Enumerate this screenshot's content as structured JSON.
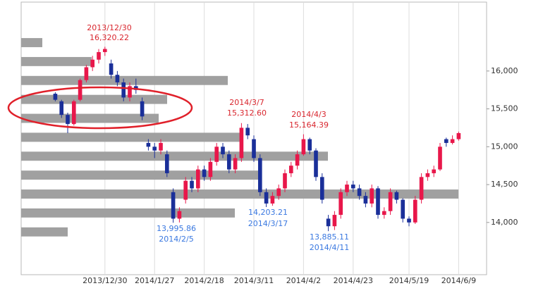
{
  "chart_data": {
    "type": "candlestick",
    "categories": [
      null,
      null,
      null,
      null,
      null,
      null,
      null,
      null,
      null,
      null,
      null,
      null,
      null,
      "2013/12/30",
      null,
      null,
      null,
      null,
      null,
      null,
      null,
      "2014/1/27",
      null,
      null,
      null,
      null,
      null,
      null,
      null,
      "2014/2/18",
      null,
      null,
      null,
      null,
      null,
      null,
      null,
      "2014/3/11",
      null,
      null,
      null,
      null,
      null,
      null,
      null,
      "2014/4/2",
      null,
      null,
      null,
      null,
      null,
      null,
      null,
      "2014/4/23",
      null,
      null,
      null,
      null,
      null,
      null,
      null,
      null,
      "2014/5/19",
      null,
      null,
      null,
      null,
      null,
      null,
      null,
      "2014/6/9",
      null,
      null,
      null,
      null
    ],
    "values": [
      null,
      null,
      null,
      null,
      null,
      [
        15700,
        15720,
        15600,
        15620
      ],
      [
        15600,
        15620,
        15380,
        15420
      ],
      [
        15420,
        15450,
        15180,
        15300
      ],
      [
        15300,
        15620,
        15280,
        15600
      ],
      [
        15620,
        15900,
        15600,
        15880
      ],
      [
        15880,
        16080,
        15850,
        16050
      ],
      [
        16050,
        16200,
        16000,
        16150
      ],
      [
        16150,
        16290,
        16100,
        16250
      ],
      [
        16250,
        16320.22,
        16200,
        16291
      ],
      [
        16100,
        16150,
        15900,
        15950
      ],
      [
        15950,
        16000,
        15800,
        15850
      ],
      [
        15850,
        15900,
        15600,
        15650
      ],
      [
        15650,
        15850,
        15600,
        15800
      ],
      [
        15800,
        15900,
        15700,
        15750
      ],
      [
        15600,
        15650,
        15350,
        15400
      ],
      [
        15050,
        15100,
        14950,
        15000
      ],
      [
        15000,
        15050,
        14850,
        14950
      ],
      [
        14950,
        15100,
        14900,
        15050
      ],
      [
        14900,
        14950,
        14600,
        14650
      ],
      [
        14400,
        14450,
        13995.86,
        14050
      ],
      [
        14050,
        14200,
        14000,
        14150
      ],
      [
        14300,
        14600,
        14250,
        14550
      ],
      [
        14550,
        14600,
        14400,
        14450
      ],
      [
        14450,
        14750,
        14400,
        14700
      ],
      [
        14700,
        14750,
        14550,
        14600
      ],
      [
        14600,
        14850,
        14550,
        14800
      ],
      [
        14800,
        15050,
        14750,
        15000
      ],
      [
        15000,
        15050,
        14850,
        14900
      ],
      [
        14900,
        14950,
        14650,
        14700
      ],
      [
        14700,
        14900,
        14650,
        14850
      ],
      [
        14850,
        15312.6,
        14800,
        15250
      ],
      [
        15250,
        15300,
        15100,
        15150
      ],
      [
        15100,
        15150,
        14800,
        14850
      ],
      [
        14850,
        14900,
        14350,
        14400
      ],
      [
        14400,
        14450,
        14203.21,
        14250
      ],
      [
        14250,
        14400,
        14220,
        14350
      ],
      [
        14350,
        14500,
        14300,
        14450
      ],
      [
        14450,
        14700,
        14400,
        14650
      ],
      [
        14650,
        14800,
        14600,
        14750
      ],
      [
        14750,
        14950,
        14700,
        14900
      ],
      [
        14900,
        15164.39,
        14880,
        15100
      ],
      [
        15100,
        15120,
        14900,
        14950
      ],
      [
        14950,
        14980,
        14550,
        14600
      ],
      [
        14600,
        14650,
        14250,
        14300
      ],
      [
        14050,
        14100,
        13885.11,
        13950
      ],
      [
        13950,
        14150,
        13900,
        14100
      ],
      [
        14100,
        14450,
        14050,
        14400
      ],
      [
        14400,
        14550,
        14350,
        14500
      ],
      [
        14500,
        14550,
        14400,
        14450
      ],
      [
        14450,
        14500,
        14300,
        14350
      ],
      [
        14350,
        14400,
        14200,
        14250
      ],
      [
        14250,
        14500,
        14200,
        14450
      ],
      [
        14450,
        14480,
        14050,
        14100
      ],
      [
        14100,
        14200,
        14050,
        14150
      ],
      [
        14150,
        14450,
        14100,
        14400
      ],
      [
        14400,
        14420,
        14250,
        14300
      ],
      [
        14300,
        14320,
        14000,
        14050
      ],
      [
        14050,
        14080,
        13950,
        14000
      ],
      [
        14000,
        14350,
        13980,
        14300
      ],
      [
        14300,
        14650,
        14250,
        14600
      ],
      [
        14600,
        14700,
        14550,
        14650
      ],
      [
        14650,
        14750,
        14600,
        14700
      ],
      [
        14700,
        15050,
        14680,
        15000
      ],
      [
        15100,
        15120,
        15000,
        15050
      ],
      [
        15050,
        15150,
        15030,
        15100
      ],
      [
        15100,
        15200,
        15080,
        15180
      ],
      null,
      null,
      null,
      null
    ],
    "up_color": "#e8174a",
    "down_color": "#1a2f99",
    "ylim": [
      13310,
      16910
    ],
    "yticks": [
      {
        "value": 14000,
        "label": "14,000"
      },
      {
        "value": 14500,
        "label": "14,500"
      },
      {
        "value": 15000,
        "label": "15,000"
      },
      {
        "value": 15500,
        "label": "15,500"
      },
      {
        "value": 16000,
        "label": "16,000"
      }
    ],
    "volume_profile": {
      "prices": [
        16375,
        16125,
        15875,
        15625,
        15375,
        15125,
        14875,
        14625,
        14375,
        14125,
        13875
      ],
      "values": [
        30,
        100,
        293,
        207,
        195,
        312,
        435,
        341,
        620,
        303,
        66
      ],
      "lim": [
        0,
        660
      ],
      "color": "#a0a0a0"
    },
    "annotations": [
      {
        "date": "2013/12/30",
        "value": "16,320.22",
        "color": "#d9262e"
      },
      {
        "date": "2014/3/7",
        "value": "15,312.60",
        "color": "#d9262e"
      },
      {
        "date": "2014/4/3",
        "value": "15,164.39",
        "color": "#d9262e"
      },
      {
        "date": "2014/2/5",
        "value": "13,995.86",
        "color": "#3a78e0"
      },
      {
        "date": "2014/3/17",
        "value": "14,203.21",
        "color": "#3a78e0"
      },
      {
        "date": "2014/4/11",
        "value": "13,885.11",
        "color": "#3a78e0"
      }
    ],
    "grid": true
  }
}
